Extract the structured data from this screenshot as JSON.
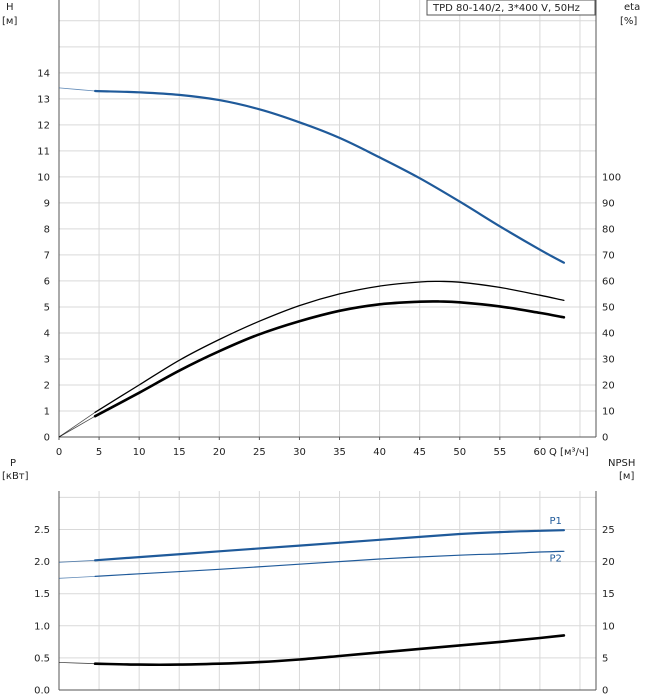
{
  "model_label": "TPD 80-140/2, 3*400 V, 50Hz",
  "colors": {
    "blue": "#1f5a9a",
    "black": "#000000",
    "grid": "#d9d9d9",
    "axis": "#555555"
  },
  "chart_data": [
    {
      "type": "line",
      "title": "TPD 80-140/2, 3*400 V, 50Hz",
      "xlabel": "Q [м³/ч]",
      "ylabel": "H\n[м]",
      "ylabel_top": "H",
      "ylabel_unit": "[м]",
      "ylabel_right_top": "eta",
      "ylabel_right_unit": "[%]",
      "xlim": [
        0,
        67
      ],
      "ylim": [
        0,
        16.8
      ],
      "y2lim": [
        0,
        168
      ],
      "x_ticks": [
        "0",
        "5",
        "10",
        "15",
        "20",
        "25",
        "30",
        "35",
        "40",
        "45",
        "50",
        "55",
        "60"
      ],
      "x_axis_label": "Q [м³/ч]",
      "y_ticks": [
        "0",
        "1",
        "2",
        "3",
        "4",
        "5",
        "6",
        "7",
        "8",
        "9",
        "10",
        "11",
        "12",
        "13",
        "14"
      ],
      "y2_ticks": [
        "0",
        "10",
        "20",
        "30",
        "40",
        "50",
        "60",
        "70",
        "80",
        "90",
        "100"
      ],
      "grid": true,
      "series": [
        {
          "id": "H",
          "axis": "left",
          "color": "#1f5a9a",
          "width": 2.2,
          "extension": [
            [
              0,
              13.42
            ],
            [
              4.5,
              13.3
            ]
          ],
          "values": [
            [
              4.5,
              13.3
            ],
            [
              10,
              13.25
            ],
            [
              15,
              13.15
            ],
            [
              20,
              12.95
            ],
            [
              25,
              12.6
            ],
            [
              30,
              12.1
            ],
            [
              35,
              11.5
            ],
            [
              40,
              10.75
            ],
            [
              45,
              9.95
            ],
            [
              50,
              9.05
            ],
            [
              55,
              8.1
            ],
            [
              60,
              7.2
            ],
            [
              63,
              6.7
            ]
          ]
        },
        {
          "id": "eta",
          "axis": "right",
          "color": "#000000",
          "width": 1.3,
          "extension": [
            [
              0,
              0
            ],
            [
              4.5,
              9.5
            ]
          ],
          "values": [
            [
              4.5,
              9.5
            ],
            [
              10,
              20
            ],
            [
              15,
              29.5
            ],
            [
              20,
              37.5
            ],
            [
              25,
              44.5
            ],
            [
              30,
              50.5
            ],
            [
              35,
              55
            ],
            [
              40,
              58
            ],
            [
              45,
              59.6
            ],
            [
              47.5,
              59.8
            ],
            [
              50,
              59.5
            ],
            [
              55,
              57.5
            ],
            [
              60,
              54.5
            ],
            [
              63,
              52.5
            ]
          ]
        },
        {
          "id": "eta_total",
          "axis": "right",
          "color": "#000000",
          "width": 2.6,
          "extension": [
            [
              0,
              0
            ],
            [
              4.5,
              8
            ]
          ],
          "values": [
            [
              4.5,
              8
            ],
            [
              10,
              17
            ],
            [
              15,
              25.5
            ],
            [
              20,
              33
            ],
            [
              25,
              39.5
            ],
            [
              30,
              44.5
            ],
            [
              35,
              48.5
            ],
            [
              40,
              51
            ],
            [
              45,
              52
            ],
            [
              47.5,
              52.1
            ],
            [
              50,
              51.8
            ],
            [
              55,
              50.2
            ],
            [
              60,
              47.7
            ],
            [
              63,
              46
            ]
          ]
        }
      ]
    },
    {
      "type": "line",
      "ylabel_top": "P",
      "ylabel_unit": "[кВт]",
      "ylabel_right_top": "NPSH",
      "ylabel_right_unit": "[м]",
      "xlim": [
        0,
        67
      ],
      "ylim": [
        0,
        3.1
      ],
      "y2lim": [
        0,
        31
      ],
      "y_ticks": [
        "0.0",
        "0.5",
        "1.0",
        "1.5",
        "2.0",
        "2.5"
      ],
      "y2_ticks": [
        "0",
        "5",
        "10",
        "15",
        "20",
        "25"
      ],
      "grid": true,
      "series": [
        {
          "id": "P1",
          "name": "P1",
          "axis": "left",
          "color": "#1f5a9a",
          "width": 2.2,
          "extension": [
            [
              0,
              1.99
            ],
            [
              4.5,
              2.02
            ]
          ],
          "values": [
            [
              4.5,
              2.02
            ],
            [
              10,
              2.07
            ],
            [
              20,
              2.16
            ],
            [
              30,
              2.25
            ],
            [
              40,
              2.34
            ],
            [
              50,
              2.43
            ],
            [
              55,
              2.46
            ],
            [
              60,
              2.48
            ],
            [
              63,
              2.49
            ]
          ]
        },
        {
          "id": "P2",
          "name": "P2",
          "axis": "left",
          "color": "#1f5a9a",
          "width": 1.2,
          "extension": [
            [
              0,
              1.74
            ],
            [
              4.5,
              1.77
            ]
          ],
          "values": [
            [
              4.5,
              1.77
            ],
            [
              10,
              1.81
            ],
            [
              20,
              1.88
            ],
            [
              30,
              1.96
            ],
            [
              40,
              2.04
            ],
            [
              50,
              2.1
            ],
            [
              55,
              2.12
            ],
            [
              60,
              2.15
            ],
            [
              63,
              2.16
            ]
          ]
        },
        {
          "id": "NPSH",
          "axis": "right",
          "color": "#000000",
          "width": 2.6,
          "extension": [
            [
              0,
              4.3
            ],
            [
              4.5,
              4.1
            ]
          ],
          "values": [
            [
              4.5,
              4.1
            ],
            [
              10,
              3.95
            ],
            [
              15,
              3.95
            ],
            [
              20,
              4.1
            ],
            [
              25,
              4.35
            ],
            [
              30,
              4.75
            ],
            [
              35,
              5.3
            ],
            [
              40,
              5.85
            ],
            [
              45,
              6.4
            ],
            [
              50,
              6.95
            ],
            [
              55,
              7.5
            ],
            [
              60,
              8.1
            ],
            [
              63,
              8.5
            ]
          ]
        }
      ]
    }
  ]
}
